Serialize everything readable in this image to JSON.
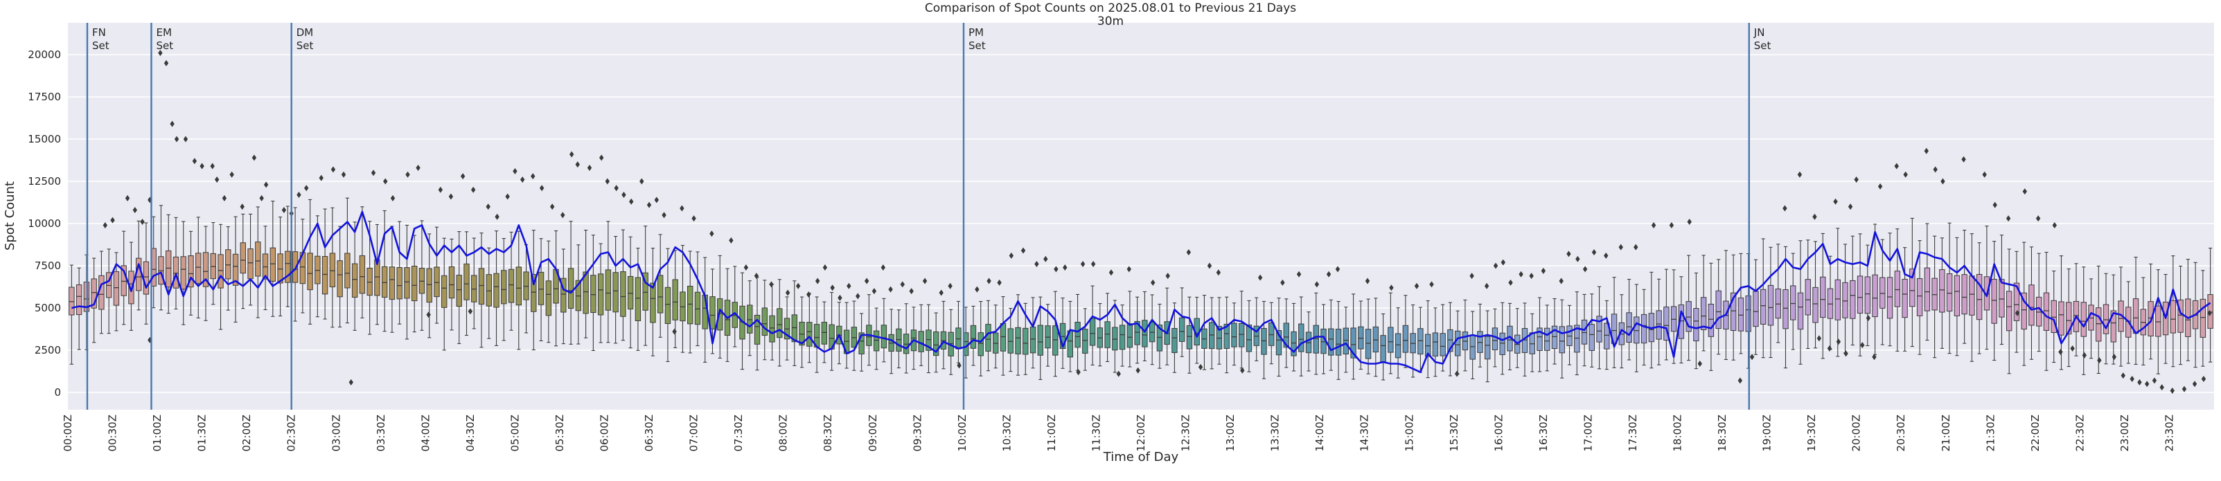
{
  "chart_data": {
    "type": "boxplot+line",
    "title": "Comparison of Spot Counts on 2025.08.01 to Previous 21 Days",
    "subtitle": "30m",
    "xlabel": "Time of Day",
    "ylabel": "Spot Count",
    "bin_minutes": 5,
    "minutes_per_day": 1440,
    "ylim": [
      -1000,
      21900
    ],
    "grid": "horizontal",
    "legend": "none",
    "y_ticks": [
      0,
      2500,
      5000,
      7500,
      10000,
      12500,
      15000,
      17500,
      20000
    ],
    "y_tick_labels": [
      "0",
      "2500",
      "5000",
      "7500",
      "10000",
      "12500",
      "15000",
      "17500",
      "20000"
    ],
    "x_tick_every_minutes": 30,
    "x_tick_labels": [
      "00:00Z",
      "00:30Z",
      "01:00Z",
      "01:30Z",
      "02:00Z",
      "02:30Z",
      "03:00Z",
      "03:30Z",
      "04:00Z",
      "04:30Z",
      "05:00Z",
      "05:30Z",
      "06:00Z",
      "06:30Z",
      "07:00Z",
      "07:30Z",
      "08:00Z",
      "08:30Z",
      "09:00Z",
      "09:30Z",
      "10:00Z",
      "10:30Z",
      "11:00Z",
      "11:30Z",
      "12:00Z",
      "12:30Z",
      "13:00Z",
      "13:30Z",
      "14:00Z",
      "14:30Z",
      "15:00Z",
      "15:30Z",
      "16:00Z",
      "16:30Z",
      "17:00Z",
      "17:30Z",
      "18:00Z",
      "18:30Z",
      "19:00Z",
      "19:30Z",
      "20:00Z",
      "20:30Z",
      "21:00Z",
      "21:30Z",
      "22:00Z",
      "22:30Z",
      "23:00Z",
      "23:30Z"
    ],
    "events": [
      {
        "line1": "FN",
        "line2": "Set",
        "minute": 13
      },
      {
        "line1": "EM",
        "line2": "Set",
        "minute": 56
      },
      {
        "line1": "DM",
        "line2": "Set",
        "minute": 150
      },
      {
        "line1": "PM",
        "line2": "Set",
        "minute": 601
      },
      {
        "line1": "JN",
        "line2": "Set",
        "minute": 1128
      }
    ],
    "colors": {
      "figure_bg": "#ffffff",
      "plot_bg": "#eaeaf2",
      "grid": "#ffffff",
      "current_day_line": "#1212dd",
      "event_line": "#4878af",
      "box_edge": "#3c3c3c",
      "outlier": "#3a3a3a",
      "text": "#262626",
      "box_fill_anchors": [
        [
          0,
          "#d2a0a8"
        ],
        [
          60,
          "#cf9c97"
        ],
        [
          150,
          "#c0955f"
        ],
        [
          290,
          "#9a9356"
        ],
        [
          420,
          "#7f9c55"
        ],
        [
          510,
          "#679a63"
        ],
        [
          630,
          "#589d7f"
        ],
        [
          720,
          "#4f9a8e"
        ],
        [
          870,
          "#6095b6"
        ],
        [
          990,
          "#8da4cf"
        ],
        [
          1110,
          "#b09fd8"
        ],
        [
          1200,
          "#c79fd4"
        ],
        [
          1320,
          "#d39ec0"
        ],
        [
          1440,
          "#d2a0a8"
        ]
      ]
    },
    "box_anchors": {
      "minutes": [
        0,
        30,
        60,
        90,
        120,
        150,
        180,
        210,
        240,
        270,
        300,
        330,
        360,
        390,
        420,
        450,
        480,
        510,
        540,
        570,
        600,
        630,
        660,
        690,
        720,
        750,
        780,
        810,
        840,
        870,
        900,
        930,
        960,
        990,
        1020,
        1050,
        1080,
        1110,
        1140,
        1170,
        1200,
        1230,
        1260,
        1290,
        1320,
        1350,
        1380,
        1410,
        1440
      ],
      "median": [
        5300,
        6200,
        7200,
        7200,
        7700,
        7400,
        7000,
        6600,
        6400,
        6200,
        6200,
        5900,
        5900,
        5700,
        5000,
        4300,
        3800,
        3300,
        3100,
        3000,
        3000,
        3100,
        3100,
        3300,
        3400,
        3400,
        3300,
        3200,
        3000,
        3000,
        2900,
        2900,
        2900,
        3100,
        3400,
        3700,
        4200,
        4600,
        5000,
        5300,
        5600,
        5900,
        5900,
        5600,
        4800,
        4300,
        4200,
        4400,
        4600
      ],
      "iqr_half": [
        850,
        900,
        1000,
        900,
        900,
        900,
        1050,
        950,
        900,
        950,
        1000,
        1000,
        1200,
        1150,
        1000,
        900,
        750,
        650,
        600,
        600,
        650,
        750,
        800,
        700,
        700,
        700,
        700,
        700,
        750,
        800,
        700,
        650,
        650,
        650,
        750,
        800,
        900,
        1000,
        1050,
        1050,
        1100,
        1100,
        1150,
        1200,
        1050,
        900,
        900,
        950,
        1050
      ],
      "whisker_top": [
        1300,
        1400,
        2600,
        1700,
        1900,
        2600,
        2700,
        2800,
        2300,
        2100,
        2100,
        2300,
        2400,
        2300,
        2300,
        2000,
        1700,
        1600,
        1500,
        1500,
        1500,
        1600,
        1700,
        1600,
        1600,
        1700,
        1600,
        1600,
        1600,
        1700,
        1700,
        1600,
        1500,
        1500,
        1700,
        1900,
        2200,
        2500,
        2500,
        2600,
        2500,
        2500,
        2500,
        2500,
        2500,
        2100,
        2000,
        2200,
        2300
      ],
      "whisker_bot": [
        2500,
        1700,
        1400,
        2000,
        2100,
        1900,
        2000,
        1900,
        2100,
        2100,
        2200,
        2100,
        1800,
        2000,
        1700,
        1500,
        1400,
        1200,
        1100,
        1100,
        1100,
        1200,
        1200,
        1100,
        1100,
        1200,
        1200,
        1200,
        1200,
        1200,
        1200,
        1200,
        1100,
        1200,
        1300,
        1400,
        1600,
        1700,
        1900,
        2000,
        2100,
        2200,
        2400,
        2200,
        2000,
        1900,
        1700,
        1900,
        1900
      ],
      "median_jitter_cycle": [
        0,
        160,
        -140,
        90,
        -170,
        210,
        -80,
        130,
        -190,
        60,
        -110,
        170
      ],
      "iqr_jitter_cycle": [
        1,
        0.8,
        1.15,
        0.92,
        1.25,
        0.85,
        1.05
      ],
      "whisker_jitter_cycle": [
        1,
        0.75,
        1.2,
        0.9,
        1.05
      ]
    },
    "line": {
      "label": "2025.08.01",
      "values_5min": [
        5000,
        5100,
        5050,
        5200,
        6400,
        6600,
        7600,
        7200,
        6000,
        7600,
        6200,
        6900,
        7100,
        5800,
        7000,
        5700,
        6800,
        6300,
        6700,
        6100,
        6900,
        6400,
        6600,
        6300,
        6700,
        6200,
        6900,
        6300,
        6600,
        6900,
        7300,
        8200,
        9200,
        10000,
        8600,
        9300,
        9700,
        10100,
        9500,
        10700,
        9300,
        7600,
        9400,
        9800,
        8300,
        7900,
        9700,
        9900,
        8800,
        8100,
        8700,
        8300,
        8700,
        8100,
        8300,
        8600,
        8200,
        8500,
        8300,
        8700,
        9900,
        8700,
        6400,
        7700,
        7900,
        7300,
        6100,
        5900,
        6400,
        7000,
        7600,
        8200,
        8300,
        7500,
        7900,
        7400,
        7600,
        6500,
        6200,
        7300,
        7700,
        8600,
        8300,
        7600,
        6700,
        5700,
        2900,
        4900,
        4400,
        4700,
        4200,
        3900,
        4300,
        3800,
        3500,
        3700,
        3400,
        3100,
        2900,
        3300,
        2700,
        2400,
        2600,
        3400,
        2300,
        2500,
        3400,
        3400,
        3300,
        3200,
        3100,
        2800,
        2600,
        3100,
        2900,
        2700,
        2400,
        3000,
        2800,
        2600,
        2700,
        3100,
        3000,
        3500,
        3600,
        4100,
        4500,
        5400,
        4600,
        3900,
        5100,
        4800,
        4300,
        2700,
        3700,
        3600,
        3900,
        4500,
        4300,
        4600,
        5200,
        4400,
        4000,
        4100,
        3600,
        4300,
        3800,
        3500,
        4900,
        4500,
        4400,
        3300,
        4100,
        4400,
        3700,
        3900,
        4300,
        4200,
        3900,
        3600,
        4100,
        4300,
        3400,
        2800,
        2400,
        2900,
        3100,
        3300,
        3300,
        2500,
        2700,
        2900,
        2300,
        1800,
        1700,
        1700,
        1800,
        1700,
        1700,
        1600,
        1400,
        1200,
        2300,
        1800,
        1700,
        2600,
        3200,
        3300,
        3400,
        3300,
        3400,
        3300,
        3100,
        3300,
        2900,
        3200,
        3500,
        3600,
        3400,
        3700,
        3500,
        3600,
        3800,
        3700,
        4300,
        4200,
        4400,
        2700,
        3700,
        3400,
        4100,
        3900,
        3800,
        3900,
        3800,
        2100,
        4800,
        3900,
        3800,
        3900,
        3800,
        4400,
        4600,
        5600,
        6200,
        6300,
        6000,
        6400,
        6900,
        7300,
        7900,
        7400,
        7300,
        7900,
        8300,
        8800,
        7600,
        7900,
        7700,
        7600,
        7700,
        7500,
        9500,
        8400,
        7800,
        8500,
        7000,
        6800,
        8300,
        8200,
        8000,
        7900,
        7400,
        7100,
        7500,
        6900,
        6400,
        5700,
        7600,
        6500,
        6400,
        6300,
        5400,
        4900,
        5000,
        4500,
        4300,
        2900,
        3600,
        4500,
        3900,
        4700,
        4500,
        3800,
        4700,
        4600,
        4200,
        3500,
        3800,
        4200,
        5600,
        4400,
        6100,
        4700,
        4400,
        4600,
        5000,
        5300
      ]
    },
    "outliers": [
      [
        25,
        9900
      ],
      [
        30,
        10200
      ],
      [
        40,
        11500
      ],
      [
        45,
        10800
      ],
      [
        50,
        10100
      ],
      [
        55,
        3100
      ],
      [
        55,
        11400
      ],
      [
        62,
        20100
      ],
      [
        66,
        19500
      ],
      [
        70,
        15900
      ],
      [
        73,
        15000
      ],
      [
        79,
        15000
      ],
      [
        85,
        13700
      ],
      [
        90,
        13400
      ],
      [
        97,
        13400
      ],
      [
        100,
        12600
      ],
      [
        105,
        11500
      ],
      [
        110,
        12900
      ],
      [
        117,
        11000
      ],
      [
        125,
        13900
      ],
      [
        130,
        11500
      ],
      [
        133,
        12300
      ],
      [
        145,
        10800
      ],
      [
        150,
        10600
      ],
      [
        155,
        11700
      ],
      [
        160,
        12100
      ],
      [
        170,
        12700
      ],
      [
        178,
        13200
      ],
      [
        185,
        12900
      ],
      [
        190,
        600
      ],
      [
        205,
        13000
      ],
      [
        213,
        12500
      ],
      [
        218,
        11500
      ],
      [
        228,
        12900
      ],
      [
        235,
        13300
      ],
      [
        242,
        4600
      ],
      [
        250,
        12000
      ],
      [
        257,
        11600
      ],
      [
        265,
        12800
      ],
      [
        270,
        4800
      ],
      [
        272,
        12000
      ],
      [
        282,
        11000
      ],
      [
        288,
        10400
      ],
      [
        295,
        11600
      ],
      [
        300,
        13100
      ],
      [
        305,
        12600
      ],
      [
        312,
        12800
      ],
      [
        318,
        12100
      ],
      [
        325,
        11000
      ],
      [
        332,
        10500
      ],
      [
        338,
        14100
      ],
      [
        342,
        13500
      ],
      [
        350,
        13300
      ],
      [
        358,
        13900
      ],
      [
        362,
        12500
      ],
      [
        368,
        12100
      ],
      [
        373,
        11700
      ],
      [
        378,
        11300
      ],
      [
        385,
        12500
      ],
      [
        390,
        11100
      ],
      [
        395,
        11400
      ],
      [
        400,
        10500
      ],
      [
        407,
        3600
      ],
      [
        412,
        10900
      ],
      [
        420,
        10300
      ],
      [
        432,
        9400
      ],
      [
        445,
        9000
      ],
      [
        455,
        7400
      ],
      [
        462,
        6900
      ],
      [
        472,
        6400
      ],
      [
        483,
        5900
      ],
      [
        490,
        6300
      ],
      [
        497,
        5800
      ],
      [
        503,
        6600
      ],
      [
        508,
        7400
      ],
      [
        513,
        6200
      ],
      [
        518,
        5600
      ],
      [
        524,
        6300
      ],
      [
        530,
        5700
      ],
      [
        536,
        6600
      ],
      [
        541,
        6000
      ],
      [
        547,
        7400
      ],
      [
        552,
        6100
      ],
      [
        560,
        6400
      ],
      [
        566,
        6000
      ],
      [
        575,
        6600
      ],
      [
        586,
        5900
      ],
      [
        592,
        6300
      ],
      [
        598,
        1600
      ],
      [
        610,
        6100
      ],
      [
        618,
        6600
      ],
      [
        625,
        6500
      ],
      [
        633,
        8100
      ],
      [
        641,
        8400
      ],
      [
        650,
        7600
      ],
      [
        656,
        7900
      ],
      [
        663,
        7300
      ],
      [
        669,
        7400
      ],
      [
        678,
        1200
      ],
      [
        681,
        7600
      ],
      [
        688,
        7600
      ],
      [
        700,
        7100
      ],
      [
        705,
        1100
      ],
      [
        712,
        7300
      ],
      [
        718,
        1300
      ],
      [
        728,
        6500
      ],
      [
        738,
        6900
      ],
      [
        752,
        8300
      ],
      [
        760,
        1500
      ],
      [
        766,
        7500
      ],
      [
        772,
        7100
      ],
      [
        788,
        1300
      ],
      [
        800,
        6800
      ],
      [
        815,
        6500
      ],
      [
        826,
        7000
      ],
      [
        838,
        6400
      ],
      [
        846,
        7000
      ],
      [
        852,
        7300
      ],
      [
        872,
        6600
      ],
      [
        888,
        6200
      ],
      [
        905,
        6300
      ],
      [
        915,
        6400
      ],
      [
        932,
        1100
      ],
      [
        942,
        6900
      ],
      [
        952,
        6300
      ],
      [
        958,
        7500
      ],
      [
        963,
        7700
      ],
      [
        968,
        6500
      ],
      [
        975,
        7000
      ],
      [
        982,
        6900
      ],
      [
        990,
        7200
      ],
      [
        1002,
        6600
      ],
      [
        1007,
        8200
      ],
      [
        1013,
        7900
      ],
      [
        1018,
        7300
      ],
      [
        1024,
        8300
      ],
      [
        1032,
        8100
      ],
      [
        1042,
        8600
      ],
      [
        1052,
        8600
      ],
      [
        1064,
        9900
      ],
      [
        1076,
        9900
      ],
      [
        1088,
        10100
      ],
      [
        1095,
        1700
      ],
      [
        1122,
        700
      ],
      [
        1130,
        2100
      ],
      [
        1152,
        10900
      ],
      [
        1162,
        12900
      ],
      [
        1172,
        10400
      ],
      [
        1175,
        3200
      ],
      [
        1182,
        2600
      ],
      [
        1186,
        11300
      ],
      [
        1188,
        3000
      ],
      [
        1193,
        2300
      ],
      [
        1196,
        11000
      ],
      [
        1200,
        12600
      ],
      [
        1204,
        2800
      ],
      [
        1208,
        4400
      ],
      [
        1212,
        2100
      ],
      [
        1216,
        12200
      ],
      [
        1227,
        13400
      ],
      [
        1233,
        12900
      ],
      [
        1247,
        14300
      ],
      [
        1253,
        13200
      ],
      [
        1258,
        12500
      ],
      [
        1272,
        13800
      ],
      [
        1286,
        12900
      ],
      [
        1293,
        11100
      ],
      [
        1302,
        10300
      ],
      [
        1308,
        4700
      ],
      [
        1313,
        11900
      ],
      [
        1322,
        10300
      ],
      [
        1333,
        9900
      ],
      [
        1337,
        2400
      ],
      [
        1345,
        2600
      ],
      [
        1353,
        2200
      ],
      [
        1363,
        1900
      ],
      [
        1373,
        2100
      ],
      [
        1379,
        1000
      ],
      [
        1385,
        800
      ],
      [
        1390,
        600
      ],
      [
        1395,
        500
      ],
      [
        1400,
        700
      ],
      [
        1405,
        300
      ],
      [
        1412,
        100
      ],
      [
        1420,
        200
      ],
      [
        1427,
        500
      ],
      [
        1433,
        800
      ],
      [
        1437,
        4700
      ]
    ]
  }
}
